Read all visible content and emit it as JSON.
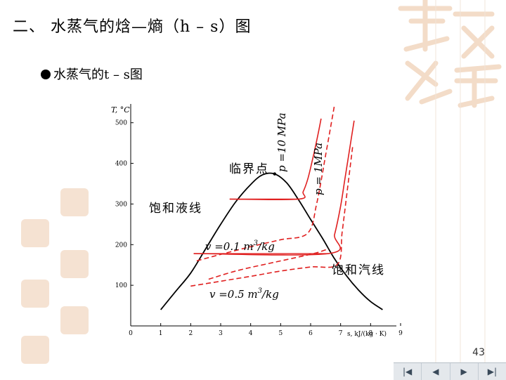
{
  "slide": {
    "title": "二、 水蒸气的焓—熵（h – s）图",
    "bullet": "水蒸气的t – s图",
    "page_number": "43"
  },
  "nav": {
    "first": "|◀",
    "prev": "◀",
    "next": "▶",
    "last": "▶|"
  },
  "colors": {
    "curve": "#000000",
    "isobar": "#e02020",
    "isochore": "#e02020",
    "decor": "#f3dcc8",
    "nav_bg": "#e4e8ec"
  },
  "chart_data": {
    "type": "line",
    "ylabel": "T, °C",
    "xlabel": "s, kJ/(kg · K)",
    "xlim": [
      0,
      9
    ],
    "ylim": [
      0,
      560
    ],
    "x_ticks": [
      "0",
      "1",
      "2",
      "3",
      "4",
      "5",
      "6",
      "7",
      "8",
      "9"
    ],
    "y_ticks": [
      "100",
      "200",
      "300",
      "400",
      "500"
    ],
    "annotations": {
      "critical_point": "临界点",
      "sat_liquid": "饱和液线",
      "sat_vapor": "饱和汽线",
      "p_high": "p =10 MPa",
      "p_low": "p = 1MPa",
      "v_small_text": "v =0.1 m",
      "v_small_exp": "3",
      "v_small_unit": "/kg",
      "v_large_text": "v =0.5 m",
      "v_large_exp": "3",
      "v_large_unit": "/kg"
    },
    "series": [
      {
        "kind": "saturation_dome",
        "x": [
          1.0,
          1.5,
          2.0,
          2.5,
          3.0,
          3.5,
          4.0,
          4.4,
          4.8,
          5.2,
          5.6,
          6.0,
          6.4,
          6.8,
          7.2,
          7.6,
          8.0,
          8.4
        ],
        "y": [
          40,
          85,
          130,
          190,
          250,
          305,
          348,
          372,
          374,
          352,
          310,
          262,
          215,
          165,
          123,
          88,
          60,
          40
        ]
      },
      {
        "name": "p =10 MPa",
        "kind": "isobar",
        "x": [
          3.3,
          5.6,
          5.75,
          5.9,
          6.05,
          6.2,
          6.35
        ],
        "y": [
          312,
          312,
          330,
          360,
          405,
          455,
          510
        ]
      },
      {
        "name": "p = 1MPa",
        "kind": "isobar",
        "x": [
          2.1,
          6.6,
          6.8,
          7.0,
          7.15,
          7.3,
          7.45
        ],
        "y": [
          178,
          178,
          225,
          295,
          365,
          435,
          505
        ]
      },
      {
        "name": "v =0.1 m3/kg",
        "kind": "isochore",
        "x": [
          2.2,
          3.0,
          4.0,
          5.0,
          5.9,
          6.2,
          6.5,
          6.8
        ],
        "y": [
          160,
          176,
          195,
          212,
          228,
          300,
          420,
          545
        ]
      },
      {
        "name": "v =0.5 m3/kg",
        "kind": "isochore",
        "x": [
          2.0,
          3.0,
          4.0,
          5.0,
          6.0,
          6.9,
          7.05,
          7.2,
          7.4
        ],
        "y": [
          98,
          110,
          122,
          135,
          145,
          152,
          230,
          320,
          440
        ]
      },
      {
        "kind": "isochore",
        "x": [
          2.6,
          3.5,
          4.5,
          5.5,
          6.2,
          6.6
        ],
        "y": [
          115,
          135,
          152,
          168,
          180,
          190
        ]
      }
    ]
  }
}
